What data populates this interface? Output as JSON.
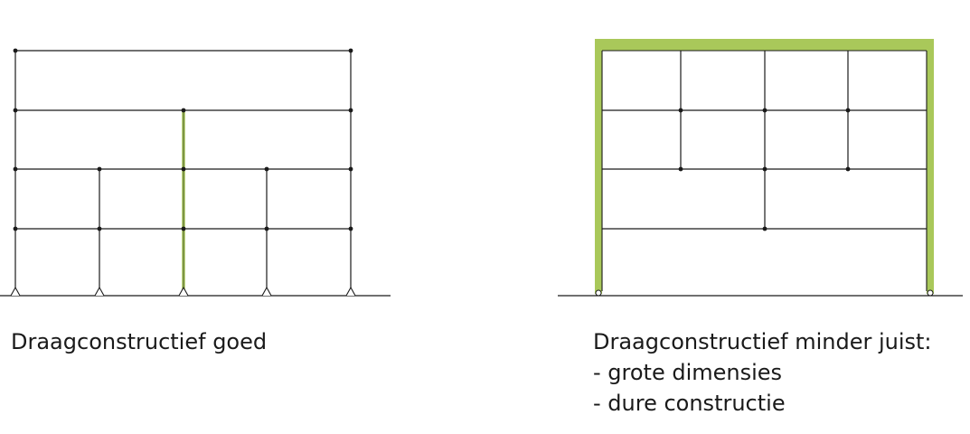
{
  "left_structure": {
    "caption": "Draagconstructief goed"
  },
  "right_structure": {
    "caption": "Draagconstructief minder juist:",
    "notes": [
      "- grote dimensies",
      "- dure constructie"
    ]
  },
  "colors": {
    "line": "#1a1a1a",
    "highlight": "#a9c85a",
    "node": "#1a1a1a"
  }
}
